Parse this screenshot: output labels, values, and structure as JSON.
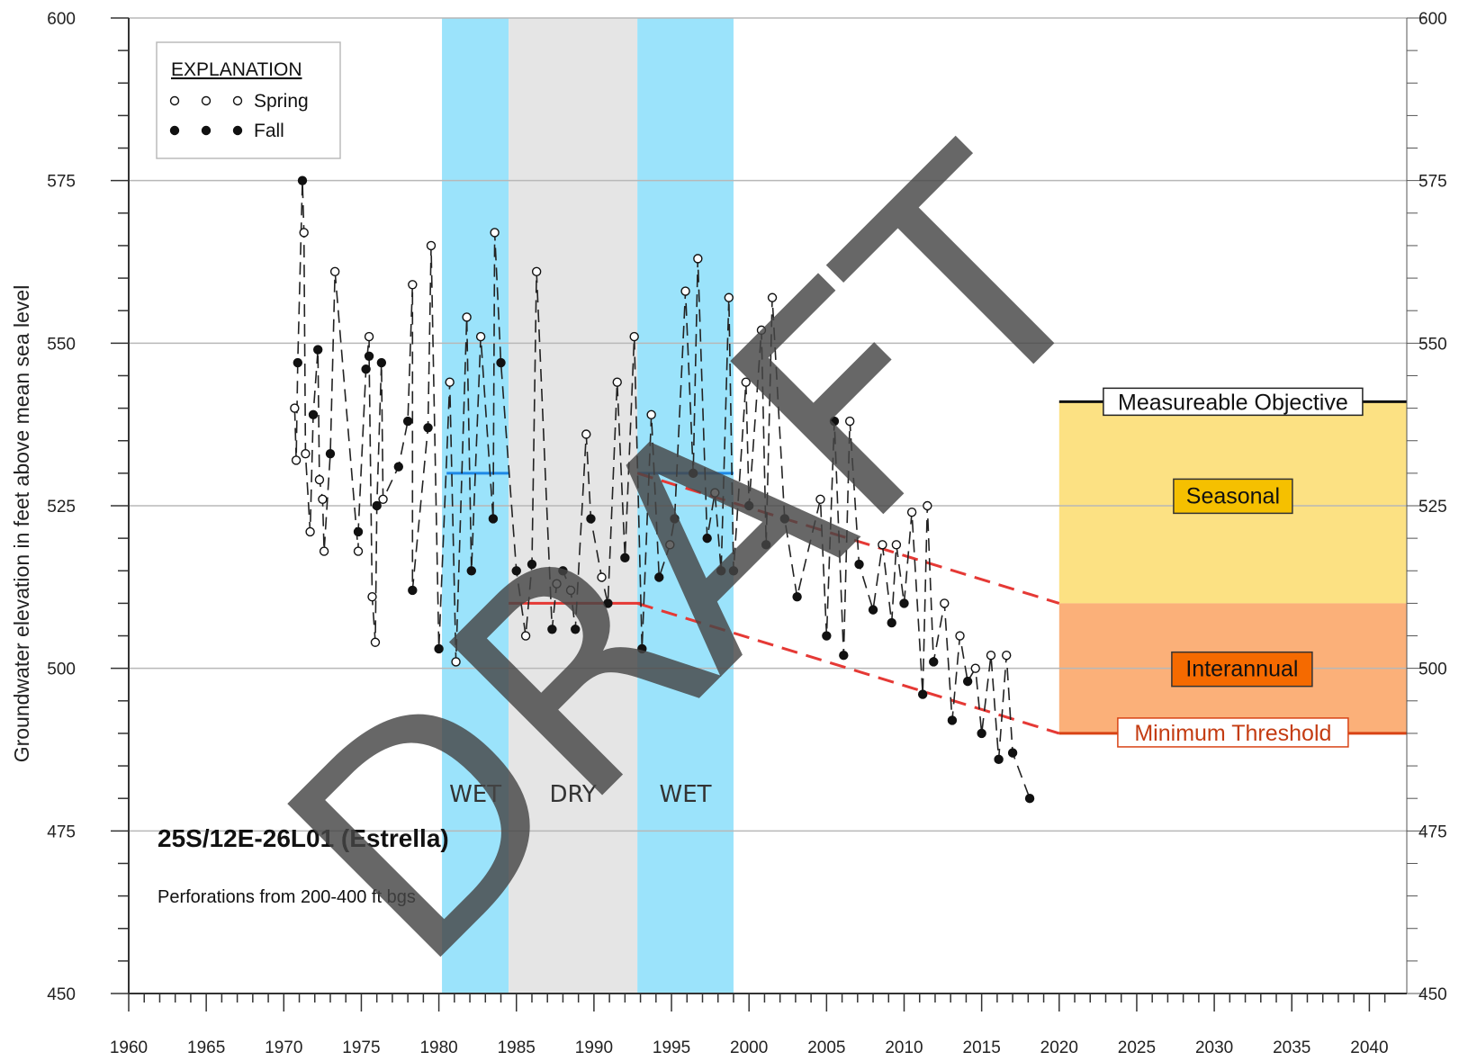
{
  "chart_data": {
    "type": "line",
    "title": "25S/12E-26L01 (Estrella)",
    "subtitle": "Perforations from 200-400 ft bgs",
    "ylabel": "Groundwater elevation in feet above mean sea level",
    "xlabel": "",
    "xlim": [
      1960,
      2041
    ],
    "ylim": [
      450,
      600
    ],
    "x_ticks": [
      1960,
      1965,
      1970,
      1975,
      1980,
      1985,
      1990,
      1995,
      2000,
      2005,
      2010,
      2015,
      2020,
      2025,
      2030,
      2035,
      2040
    ],
    "y_ticks": [
      450,
      475,
      500,
      525,
      550,
      575,
      600
    ],
    "grid": "horizontal",
    "legend": {
      "title": "EXPLANATION",
      "position": "top-left",
      "entries": [
        {
          "label": "Spring",
          "marker": "open-circle"
        },
        {
          "label": "Fall",
          "marker": "filled-circle"
        }
      ]
    },
    "watermark": "DRAFT",
    "periods": [
      {
        "label": "WET",
        "start": 1980.2,
        "end": 1984.5,
        "color": "#9be3fb"
      },
      {
        "label": "DRY",
        "start": 1984.5,
        "end": 1992.8,
        "color": "#e5e5e5"
      },
      {
        "label": "WET",
        "start": 1992.8,
        "end": 1999.0,
        "color": "#9be3fb"
      }
    ],
    "period_averages": [
      {
        "start": 1980.5,
        "end": 1984.5,
        "y": 530,
        "color": "#1e88e5"
      },
      {
        "start": 1984.5,
        "end": 1993.0,
        "y": 510,
        "color": "#e53935"
      },
      {
        "start": 1992.8,
        "end": 1999.0,
        "y": 530,
        "color": "#1e88e5"
      }
    ],
    "trend_lines": [
      {
        "x": [
          1992.8,
          2020
        ],
        "y": [
          530,
          510
        ],
        "color": "#e53935",
        "style": "dashed"
      },
      {
        "x": [
          1992.8,
          2020
        ],
        "y": [
          510,
          490
        ],
        "color": "#e53935",
        "style": "dashed"
      }
    ],
    "thresholds": {
      "measurable_objective": {
        "label": "Measureable Objective",
        "value": 541
      },
      "minimum_threshold": {
        "label": "Minimum Threshold",
        "value": 490
      },
      "zones": [
        {
          "label": "Seasonal",
          "from": 510,
          "to": 541,
          "color": "#fce183",
          "label_color": "#f5c000"
        },
        {
          "label": "Interannual",
          "from": 490,
          "to": 510,
          "color": "#fbb079",
          "label_color": "#f56a00"
        }
      ],
      "x_start": 2020,
      "x_end": 2041
    },
    "series": [
      {
        "name": "Spring",
        "marker": "open-circle",
        "points": [
          [
            1970.7,
            540
          ],
          [
            1970.8,
            532
          ],
          [
            1971.3,
            567
          ],
          [
            1971.4,
            533
          ],
          [
            1971.7,
            521
          ],
          [
            1972.3,
            529
          ],
          [
            1972.5,
            526
          ],
          [
            1972.6,
            518
          ],
          [
            1973.3,
            561
          ],
          [
            1974.8,
            518
          ],
          [
            1975.5,
            551
          ],
          [
            1975.7,
            511
          ],
          [
            1975.9,
            504
          ],
          [
            1976.4,
            526
          ],
          [
            1978.3,
            559
          ],
          [
            1979.5,
            565
          ],
          [
            1980.7,
            544
          ],
          [
            1981.1,
            501
          ],
          [
            1981.8,
            554
          ],
          [
            1982.7,
            551
          ],
          [
            1983.6,
            567
          ],
          [
            1985.6,
            505
          ],
          [
            1986.3,
            561
          ],
          [
            1987.6,
            513
          ],
          [
            1988.5,
            512
          ],
          [
            1989.5,
            536
          ],
          [
            1990.5,
            514
          ],
          [
            1991.5,
            544
          ],
          [
            1992.6,
            551
          ],
          [
            1993.7,
            539
          ],
          [
            1994.9,
            519
          ],
          [
            1995.9,
            558
          ],
          [
            1996.7,
            563
          ],
          [
            1997.8,
            527
          ],
          [
            1998.7,
            557
          ],
          [
            1999.8,
            544
          ],
          [
            2000.8,
            552
          ],
          [
            2001.5,
            557
          ],
          [
            2004.6,
            526
          ],
          [
            2006.5,
            538
          ],
          [
            2008.6,
            519
          ],
          [
            2009.5,
            519
          ],
          [
            2010.5,
            524
          ],
          [
            2011.5,
            525
          ],
          [
            2012.6,
            510
          ],
          [
            2013.6,
            505
          ],
          [
            2014.6,
            500
          ],
          [
            2015.6,
            502
          ],
          [
            2016.6,
            502
          ]
        ]
      },
      {
        "name": "Fall",
        "marker": "filled-circle",
        "points": [
          [
            1970.9,
            547
          ],
          [
            1971.2,
            575
          ],
          [
            1971.9,
            539
          ],
          [
            1972.2,
            549
          ],
          [
            1973.0,
            533
          ],
          [
            1974.8,
            521
          ],
          [
            1975.3,
            546
          ],
          [
            1975.5,
            548
          ],
          [
            1976.0,
            525
          ],
          [
            1976.3,
            547
          ],
          [
            1977.4,
            531
          ],
          [
            1978.0,
            538
          ],
          [
            1978.3,
            512
          ],
          [
            1979.3,
            537
          ],
          [
            1980.0,
            503
          ],
          [
            1982.1,
            515
          ],
          [
            1983.5,
            523
          ],
          [
            1984.0,
            547
          ],
          [
            1985.0,
            515
          ],
          [
            1986.0,
            516
          ],
          [
            1987.3,
            506
          ],
          [
            1988.0,
            515
          ],
          [
            1988.8,
            506
          ],
          [
            1989.8,
            523
          ],
          [
            1990.9,
            510
          ],
          [
            1992.0,
            517
          ],
          [
            1993.1,
            503
          ],
          [
            1994.2,
            514
          ],
          [
            1995.2,
            523
          ],
          [
            1996.4,
            530
          ],
          [
            1997.3,
            520
          ],
          [
            1998.2,
            515
          ],
          [
            1999.0,
            515
          ],
          [
            2000.0,
            525
          ],
          [
            2001.1,
            519
          ],
          [
            2002.3,
            523
          ],
          [
            2003.1,
            511
          ],
          [
            2005.0,
            505
          ],
          [
            2005.5,
            538
          ],
          [
            2006.1,
            502
          ],
          [
            2007.1,
            516
          ],
          [
            2008.0,
            509
          ],
          [
            2009.2,
            507
          ],
          [
            2010.0,
            510
          ],
          [
            2011.2,
            496
          ],
          [
            2011.9,
            501
          ],
          [
            2013.1,
            492
          ],
          [
            2014.1,
            498
          ],
          [
            2015.0,
            490
          ],
          [
            2016.1,
            486
          ],
          [
            2017.0,
            487
          ],
          [
            2018.1,
            480
          ]
        ]
      }
    ]
  }
}
